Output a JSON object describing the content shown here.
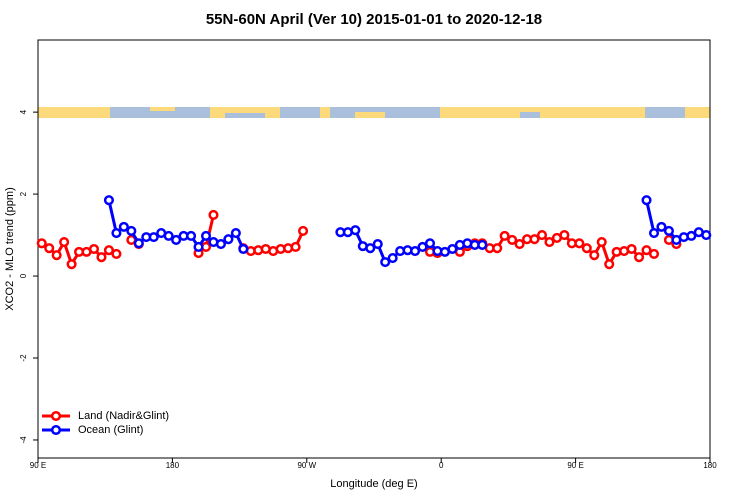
{
  "chart_data": {
    "type": "line",
    "title": "55N-60N April (Ver 10)   2015-01-01 to 2020-12-18",
    "xlabel": "Longitude (deg E)",
    "ylabel": "XCO2 - MLO trend (ppm)",
    "xlim": [
      90,
      540
    ],
    "ylim": [
      -4.44,
      5.76
    ],
    "xticks": [
      {
        "value": 90,
        "label": "90 E"
      },
      {
        "value": 180,
        "label": "180"
      },
      {
        "value": 270,
        "label": "90 W"
      },
      {
        "value": 360,
        "label": "0"
      },
      {
        "value": 450,
        "label": "90 E"
      },
      {
        "value": 540,
        "label": "180"
      }
    ],
    "yticks": [
      -4,
      -2,
      0,
      2,
      4
    ],
    "legend": "bottomleft",
    "series": [
      {
        "name": "Land (Nadir&Glint)",
        "color": "#ff0000",
        "x": [
          92.5,
          97.5,
          102.5,
          107.5,
          112.5,
          117.5,
          122.5,
          127.5,
          132.5,
          137.5,
          142.5,
          null,
          152.5,
          157.5,
          null,
          197.5,
          202.5,
          207.5,
          null,
          227.5,
          232.5,
          237.5,
          242.5,
          247.5,
          252.5,
          257.5,
          262.5,
          267.5,
          null,
          352.5,
          357.5,
          null,
          372.5,
          377.5,
          382.5,
          387.5,
          392.5,
          397.5,
          402.5,
          407.5,
          412.5,
          417.5,
          422.5,
          427.5,
          432.5,
          437.5,
          442.5,
          447.5,
          452.5,
          457.5,
          462.5,
          467.5,
          472.5,
          477.5,
          482.5,
          487.5,
          492.5,
          497.5,
          502.5,
          null,
          512.5,
          517.5
        ],
        "values": [
          0.8,
          0.68,
          0.51,
          0.83,
          0.29,
          0.59,
          0.59,
          0.66,
          0.46,
          0.63,
          0.54,
          null,
          0.88,
          0.78,
          null,
          0.56,
          0.71,
          1.49,
          null,
          0.68,
          0.61,
          0.63,
          0.66,
          0.61,
          0.66,
          0.68,
          0.71,
          1.1,
          null,
          0.59,
          0.56,
          null,
          0.59,
          0.73,
          0.8,
          0.8,
          0.68,
          0.68,
          0.98,
          0.88,
          0.78,
          0.9,
          0.9,
          1.0,
          0.83,
          0.93,
          1.0,
          0.8,
          0.8,
          0.68,
          0.51,
          0.83,
          0.29,
          0.59,
          0.61,
          0.66,
          0.46,
          0.63,
          0.54,
          null,
          0.88,
          0.78
        ]
      },
      {
        "name": "Ocean (Glint)",
        "color": "#0000ff",
        "x": [
          137.5,
          142.5,
          147.5,
          152.5,
          157.5,
          162.5,
          167.5,
          172.5,
          177.5,
          182.5,
          187.5,
          192.5,
          197.5,
          202.5,
          207.5,
          212.5,
          217.5,
          222.5,
          227.5,
          null,
          292.5,
          297.5,
          302.5,
          307.5,
          312.5,
          317.5,
          322.5,
          327.5,
          332.5,
          337.5,
          342.5,
          347.5,
          352.5,
          357.5,
          362.5,
          367.5,
          372.5,
          377.5,
          382.5,
          387.5,
          null,
          497.5,
          502.5,
          507.5,
          512.5,
          517.5,
          522.5,
          527.5,
          532.5,
          537.5
        ],
        "values": [
          1.85,
          1.05,
          1.2,
          1.1,
          0.8,
          0.95,
          0.95,
          1.05,
          0.98,
          0.88,
          0.98,
          0.98,
          0.71,
          0.98,
          0.83,
          0.78,
          0.9,
          1.05,
          0.66,
          null,
          1.07,
          1.07,
          1.12,
          0.73,
          0.68,
          0.78,
          0.34,
          0.44,
          0.61,
          0.63,
          0.61,
          0.71,
          0.8,
          0.61,
          0.59,
          0.66,
          0.76,
          0.8,
          0.76,
          0.76,
          null,
          1.85,
          1.05,
          1.2,
          1.1,
          0.88,
          0.95,
          0.98,
          1.07,
          1.0
        ]
      }
    ]
  }
}
